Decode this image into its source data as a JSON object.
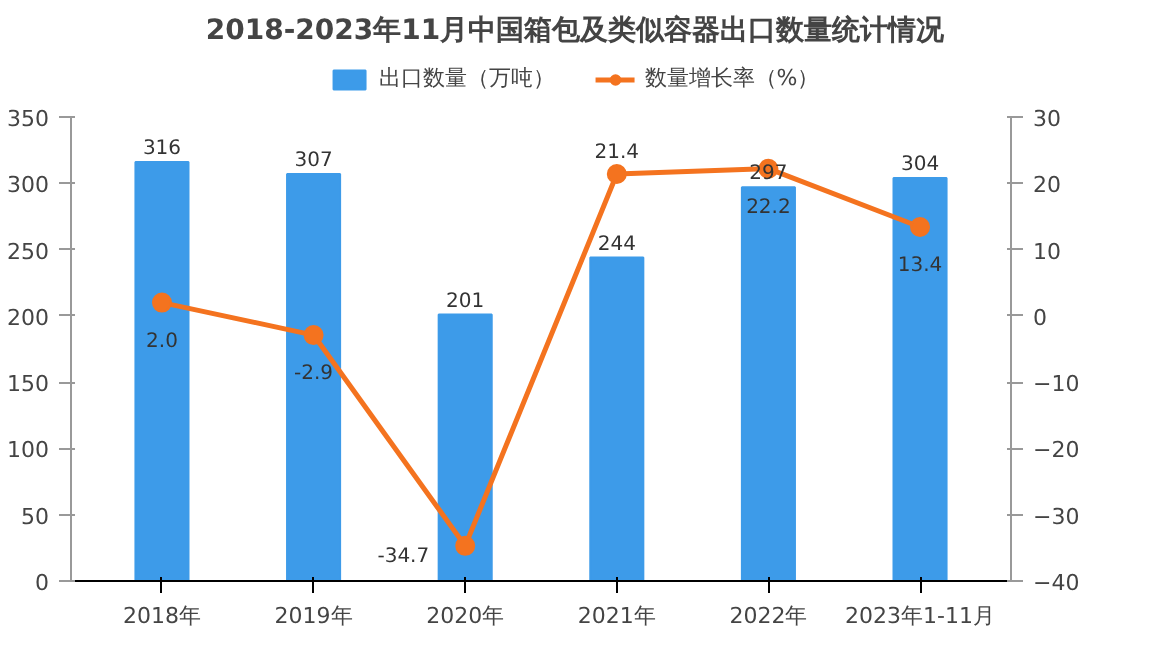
{
  "chart_data": {
    "type": "bar",
    "title": "2018-2023年11月中国箱包及类似容器出口数量统计情况",
    "categories": [
      "2018年",
      "2019年",
      "2020年",
      "2021年",
      "2022年",
      "2023年1-11月"
    ],
    "series": [
      {
        "name": "出口数量（万吨）",
        "color": "#3d9be9",
        "values": [
          316,
          307,
          201,
          244,
          297,
          304
        ]
      },
      {
        "name": "数量增长率（%）",
        "type": "line",
        "axis": "y2",
        "color": "#f4731f",
        "values": [
          2.0,
          -2.9,
          -34.7,
          21.4,
          22.2,
          13.4
        ],
        "value_labels": [
          "2.0",
          "-2.9",
          "-34.7",
          "21.4",
          "22.2",
          "13.4"
        ]
      }
    ],
    "ylim": [
      0,
      350
    ],
    "yticks": [
      0,
      50,
      100,
      150,
      200,
      250,
      300,
      350
    ],
    "y2lim": [
      -40,
      30
    ],
    "y2ticks": [
      -40,
      -30,
      -20,
      -10,
      0,
      10,
      20,
      30
    ],
    "data_labels": true,
    "legend": "top",
    "grid": false,
    "marker": "circle",
    "line_style": "solid"
  }
}
